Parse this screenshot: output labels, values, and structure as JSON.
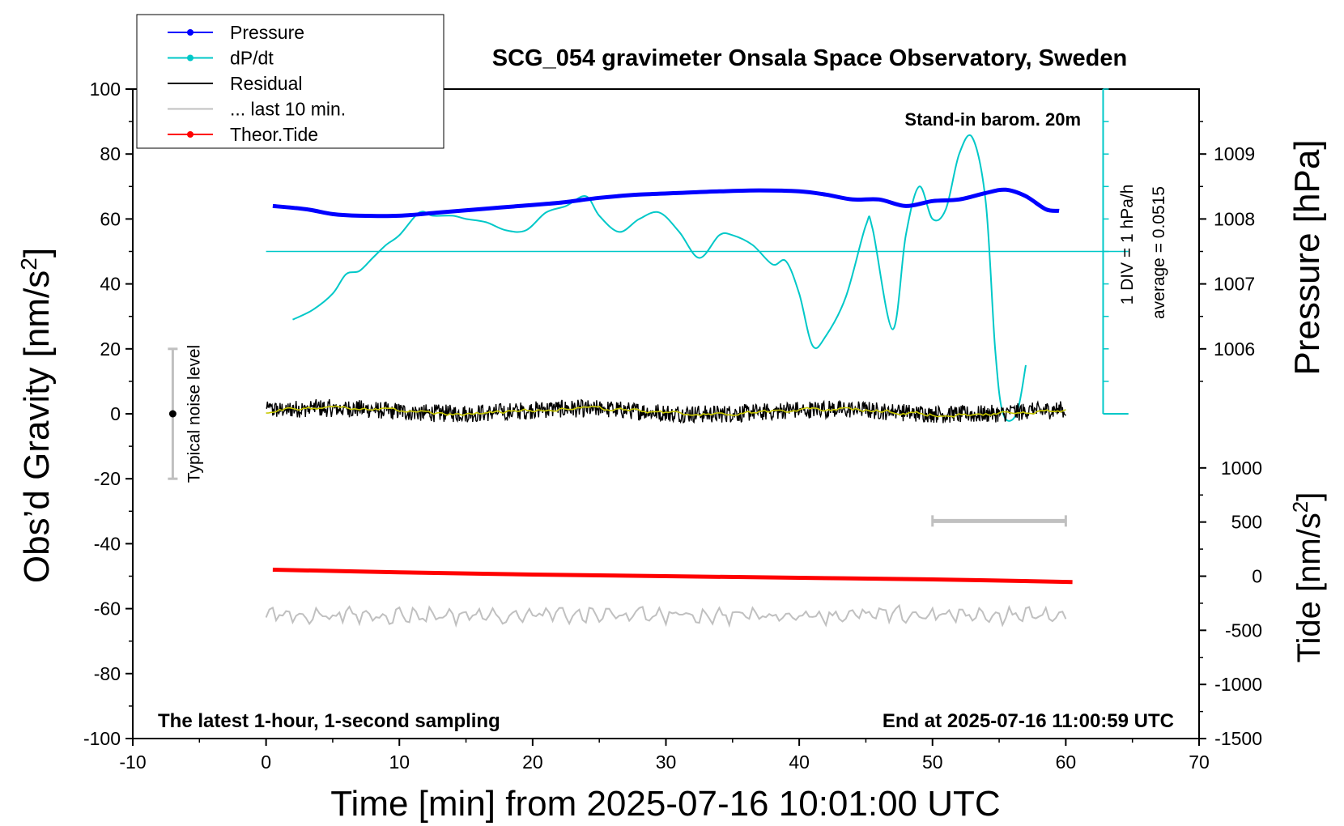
{
  "chart_data": {
    "type": "line",
    "title": "SCG_054 gravimeter Onsala Space Observatory, Sweden",
    "xlabel": "Time [min] from 2025-07-16 10:01:00 UTC",
    "ylabel_left": "Obs’d Gravity [nm/s²]",
    "ylabel_left_base": "Obs’d Gravity [nm/s",
    "ylabel_left_sup": "2",
    "ylabel_left_close": "]",
    "ylabel_right_pressure": "Pressure [hPa]",
    "ylabel_right_tide_base": "Tide [nm/s",
    "ylabel_right_tide_sup": "2",
    "ylabel_right_tide_close": "]",
    "xlim": [
      -10,
      70
    ],
    "ylim": [
      -100,
      100
    ],
    "x_ticks": [
      "-10",
      "0",
      "10",
      "20",
      "30",
      "40",
      "50",
      "60",
      "70"
    ],
    "y_ticks": [
      "-100",
      "-80",
      "-60",
      "-40",
      "-20",
      "0",
      "20",
      "40",
      "60",
      "80",
      "100"
    ],
    "pressure_axis": {
      "ticks": [
        "1006",
        "1007",
        "1008",
        "1009"
      ],
      "values": [
        1006,
        1007,
        1008,
        1009
      ]
    },
    "tide_axis": {
      "ticks": [
        "-1500",
        "-1000",
        "-500",
        "0",
        "500",
        "1000"
      ],
      "values": [
        -1500,
        -1000,
        -500,
        0,
        500,
        1000
      ]
    },
    "legend": {
      "placement": "top-left",
      "entries": [
        {
          "label": "Pressure",
          "color": "#0000ff",
          "marker": true
        },
        {
          "label": "dP/dt",
          "color": "#00c8c8",
          "marker": true
        },
        {
          "label": "Residual",
          "color": "#000000",
          "marker": false
        },
        {
          "label": "... last 10 min.",
          "color": "#c0c0c0",
          "marker": false
        },
        {
          "label": "Theor.Tide",
          "color": "#ff0000",
          "marker": true
        }
      ]
    },
    "annotations": {
      "stand_in": "Stand-in barom. 20m",
      "div_label": "1 DIV = 1 hPa/h",
      "average_label": "average = 0.0515",
      "noise_label": "Typical noise level",
      "bottom_left": "The latest 1-hour, 1-second sampling",
      "bottom_right": "End at 2025-07-16 11:00:59 UTC"
    },
    "noise_bar": {
      "x": -7,
      "center": 0,
      "half_range": 20
    },
    "gray_bar": {
      "x_start": 50,
      "x_end": 60,
      "y": -33
    },
    "average_line_y": 50,
    "colors": {
      "pressure": "#0000ff",
      "dpdt": "#00c8c8",
      "residual": "#000000",
      "last10": "#c8c800",
      "tide": "#ff0000",
      "noise_gray": "#c0c0c0"
    },
    "series": [
      {
        "name": "Pressure",
        "x": [
          0.5,
          3,
          5,
          7,
          10,
          13,
          16,
          19,
          22,
          25,
          28,
          31,
          34,
          37,
          40,
          42,
          44,
          46,
          48,
          50,
          52,
          54,
          55.5,
          57,
          58.5,
          59.5
        ],
        "y": [
          64,
          63,
          61.5,
          61,
          61,
          62,
          63,
          64,
          65,
          66.5,
          67.5,
          68,
          68.5,
          68.8,
          68.5,
          67.5,
          66,
          66,
          64,
          65.5,
          66,
          68,
          69,
          67,
          63,
          62.5
        ]
      },
      {
        "name": "dP/dt",
        "x": [
          2,
          3.5,
          5,
          6,
          7,
          8,
          9,
          10,
          11.5,
          12.5,
          14,
          15,
          16.5,
          18,
          19.5,
          21,
          22.5,
          24,
          25,
          26.5,
          28,
          29.5,
          31,
          32.5,
          34,
          35,
          36.5,
          38,
          39,
          40,
          41,
          42,
          43.5,
          45,
          45.5,
          47,
          48,
          49,
          50,
          51,
          52,
          53,
          54,
          54.7,
          55.3,
          56.3,
          57
        ],
        "y": [
          29,
          32,
          37,
          43,
          44,
          48,
          52,
          55,
          62,
          61,
          61,
          60,
          59,
          56.5,
          56.5,
          62,
          64,
          67,
          61,
          56,
          60,
          62,
          56,
          48,
          55,
          55,
          52,
          46,
          47,
          37,
          21,
          24,
          36,
          58,
          57,
          26,
          55,
          70,
          60,
          63,
          80,
          85,
          65,
          20,
          0,
          0,
          15
        ]
      },
      {
        "name": "Residual",
        "x": [
          0,
          60
        ],
        "y": [
          1,
          0.5
        ]
      },
      {
        "name": "... last 10 min.",
        "x": [
          0,
          60
        ],
        "y": [
          0.5,
          0.5
        ]
      },
      {
        "name": "Theor.Tide",
        "x": [
          0.5,
          10,
          20,
          30,
          40,
          50,
          60.5
        ],
        "y": [
          -48,
          -48.8,
          -49.5,
          -50,
          -50.5,
          -51,
          -51.8
        ]
      },
      {
        "name": "noise",
        "x": [
          0,
          60
        ],
        "y": [
          -62,
          -62
        ]
      }
    ]
  }
}
